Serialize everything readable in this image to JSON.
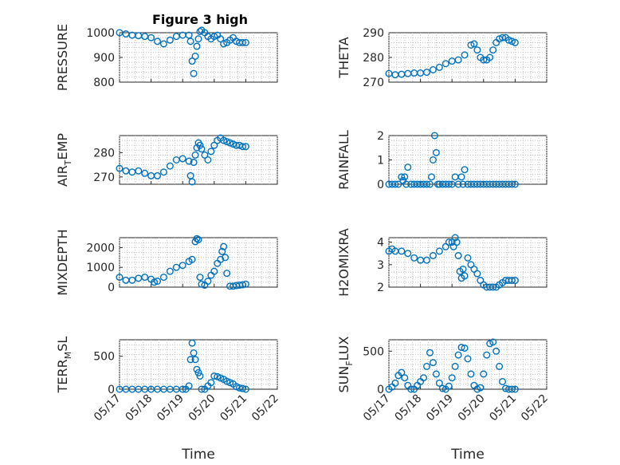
{
  "figure": {
    "title": "Figure 3 high"
  },
  "chart_data": [
    {
      "type": "scatter",
      "ylabel": "PRESSURE",
      "ylabel_parts": [
        [
          "PRESSURE",
          ""
        ]
      ],
      "xlabel": "",
      "ylim": [
        800,
        1000
      ],
      "yticks": [
        800,
        900,
        1000
      ],
      "xlim": [
        17,
        22
      ],
      "xticks": [
        "05/17",
        "05/18",
        "05/19",
        "05/20",
        "05/21",
        "05/22"
      ],
      "grid": true,
      "color": "#0072BD",
      "x": [
        17.0,
        17.2,
        17.4,
        17.6,
        17.8,
        18.0,
        18.2,
        18.4,
        18.6,
        18.8,
        19.0,
        19.2,
        19.25,
        19.3,
        19.35,
        19.4,
        19.45,
        19.5,
        19.55,
        19.6,
        19.7,
        19.8,
        19.9,
        20.0,
        20.1,
        20.2,
        20.3,
        20.4,
        20.5,
        20.6,
        20.7,
        20.8,
        20.9,
        21.0
      ],
      "y": [
        1000,
        995,
        990,
        988,
        985,
        980,
        965,
        955,
        970,
        985,
        990,
        990,
        965,
        885,
        835,
        905,
        945,
        975,
        1005,
        1010,
        1000,
        985,
        975,
        985,
        990,
        975,
        955,
        960,
        970,
        980,
        965,
        960,
        960,
        960
      ]
    },
    {
      "type": "scatter",
      "ylabel": "THETA",
      "ylabel_parts": [
        [
          "THETA",
          ""
        ]
      ],
      "xlabel": "",
      "ylim": [
        270,
        290
      ],
      "yticks": [
        270,
        280,
        290
      ],
      "xlim": [
        17,
        22
      ],
      "xticks": [
        "05/17",
        "05/18",
        "05/19",
        "05/20",
        "05/21",
        "05/22"
      ],
      "grid": true,
      "color": "#0072BD",
      "x": [
        17.0,
        17.2,
        17.4,
        17.6,
        17.8,
        18.0,
        18.2,
        18.4,
        18.6,
        18.8,
        19.0,
        19.2,
        19.4,
        19.6,
        19.7,
        19.8,
        19.9,
        20.0,
        20.1,
        20.2,
        20.3,
        20.4,
        20.5,
        20.6,
        20.7,
        20.8,
        20.9,
        21.0
      ],
      "y": [
        273.5,
        273,
        273.2,
        273.5,
        273.7,
        273.7,
        274,
        275,
        276,
        277.5,
        278.5,
        279,
        281,
        285,
        285.5,
        283,
        280,
        279,
        279,
        280,
        283,
        286,
        287.5,
        288,
        288,
        287,
        286.5,
        286
      ]
    },
    {
      "type": "scatter",
      "ylabel": "AIR_TEMP",
      "ylabel_parts": [
        [
          "AIR",
          ""
        ],
        [
          "T",
          "sub"
        ],
        [
          "EMP",
          ""
        ]
      ],
      "xlabel": "",
      "ylim": [
        267,
        287
      ],
      "yticks": [
        270,
        280
      ],
      "xlim": [
        17,
        22
      ],
      "xticks": [
        "05/17",
        "05/18",
        "05/19",
        "05/20",
        "05/21",
        "05/22"
      ],
      "grid": true,
      "color": "#0072BD",
      "x": [
        17.0,
        17.2,
        17.4,
        17.6,
        17.8,
        18.0,
        18.2,
        18.4,
        18.6,
        18.8,
        19.0,
        19.2,
        19.25,
        19.3,
        19.35,
        19.4,
        19.45,
        19.5,
        19.55,
        19.6,
        19.7,
        19.8,
        19.9,
        20.0,
        20.1,
        20.2,
        20.3,
        20.4,
        20.5,
        20.6,
        20.7,
        20.8,
        20.9,
        21.0
      ],
      "y": [
        273.5,
        272.5,
        272,
        272.5,
        271.5,
        270.5,
        270.5,
        272,
        274.5,
        277,
        277.5,
        276.5,
        270.5,
        268,
        276,
        279,
        282,
        284,
        283,
        281.5,
        279,
        277,
        280.5,
        283,
        285,
        286,
        285,
        284.5,
        284,
        283.5,
        283,
        283,
        282.5,
        282.5
      ]
    },
    {
      "type": "scatter",
      "ylabel": "RAINFALL",
      "ylabel_parts": [
        [
          "RAINFALL",
          ""
        ]
      ],
      "xlabel": "",
      "ylim": [
        0,
        2
      ],
      "yticks": [
        0,
        1,
        2
      ],
      "xlim": [
        17,
        22
      ],
      "xticks": [
        "05/17",
        "05/18",
        "05/19",
        "05/20",
        "05/21",
        "05/22"
      ],
      "grid": true,
      "color": "#0072BD",
      "x": [
        17.0,
        17.1,
        17.2,
        17.3,
        17.4,
        17.45,
        17.5,
        17.55,
        17.6,
        17.7,
        17.8,
        17.9,
        18.0,
        18.1,
        18.2,
        18.3,
        18.35,
        18.4,
        18.45,
        18.5,
        18.55,
        18.6,
        18.7,
        18.8,
        18.9,
        19.0,
        19.1,
        19.2,
        19.3,
        19.35,
        19.4,
        19.5,
        19.6,
        19.7,
        19.8,
        19.9,
        20.0,
        20.1,
        20.2,
        20.3,
        20.4,
        20.5,
        20.6,
        20.7,
        20.8,
        20.9,
        21.0
      ],
      "y": [
        0,
        0,
        0,
        0,
        0.3,
        0.15,
        0.3,
        0,
        0.7,
        0,
        0,
        0,
        0,
        0,
        0,
        0,
        0.3,
        1.0,
        2.0,
        1.3,
        0,
        0,
        0,
        0,
        0,
        0,
        0.3,
        0,
        0.3,
        0,
        0.6,
        0,
        0,
        0,
        0,
        0,
        0,
        0,
        0,
        0,
        0,
        0,
        0,
        0,
        0,
        0,
        0
      ]
    },
    {
      "type": "scatter",
      "ylabel": "MIXDEPTH",
      "ylabel_parts": [
        [
          "MIXDEPTH",
          ""
        ]
      ],
      "xlabel": "",
      "ylim": [
        0,
        2500
      ],
      "yticks": [
        0,
        1000,
        2000
      ],
      "xlim": [
        17,
        22
      ],
      "xticks": [
        "05/17",
        "05/18",
        "05/19",
        "05/20",
        "05/21",
        "05/22"
      ],
      "grid": true,
      "color": "#0072BD",
      "x": [
        17.0,
        17.2,
        17.4,
        17.6,
        17.8,
        18.0,
        18.1,
        18.2,
        18.4,
        18.6,
        18.8,
        19.0,
        19.2,
        19.3,
        19.4,
        19.45,
        19.5,
        19.55,
        19.6,
        19.7,
        19.8,
        19.9,
        20.0,
        20.1,
        20.2,
        20.25,
        20.3,
        20.35,
        20.4,
        20.5,
        20.6,
        20.7,
        20.8,
        20.9,
        21.0
      ],
      "y": [
        500,
        350,
        350,
        450,
        500,
        400,
        250,
        300,
        500,
        800,
        1000,
        1100,
        1300,
        1400,
        2300,
        2450,
        2400,
        500,
        150,
        100,
        300,
        600,
        800,
        1200,
        1400,
        1800,
        2050,
        1500,
        700,
        50,
        50,
        80,
        100,
        120,
        150
      ]
    },
    {
      "type": "scatter",
      "ylabel": "H2OMIXRA",
      "ylabel_parts": [
        [
          "H2OMIXRA",
          ""
        ]
      ],
      "xlabel": "",
      "ylim": [
        2,
        4.2
      ],
      "yticks": [
        2,
        3,
        4
      ],
      "xlim": [
        17,
        22
      ],
      "xticks": [
        "05/17",
        "05/18",
        "05/19",
        "05/20",
        "05/21",
        "05/22"
      ],
      "grid": true,
      "color": "#0072BD",
      "x": [
        17.0,
        17.1,
        17.2,
        17.4,
        17.6,
        17.8,
        18.0,
        18.2,
        18.4,
        18.6,
        18.8,
        18.9,
        19.0,
        19.05,
        19.1,
        19.15,
        19.2,
        19.25,
        19.3,
        19.35,
        19.4,
        19.5,
        19.6,
        19.7,
        19.8,
        19.9,
        20.0,
        20.1,
        20.2,
        20.3,
        20.4,
        20.5,
        20.6,
        20.7,
        20.8,
        20.9,
        21.0
      ],
      "y": [
        3.6,
        3.7,
        3.6,
        3.6,
        3.5,
        3.3,
        3.2,
        3.2,
        3.4,
        3.6,
        3.8,
        4.0,
        4.0,
        3.8,
        4.2,
        4.0,
        3.4,
        2.7,
        2.4,
        2.8,
        2.5,
        3.3,
        3.0,
        2.8,
        2.6,
        2.3,
        2.1,
        2.0,
        2.0,
        2.0,
        2.0,
        2.1,
        2.2,
        2.3,
        2.3,
        2.3,
        2.3
      ]
    },
    {
      "type": "scatter",
      "ylabel": "TERR_MSL",
      "ylabel_parts": [
        [
          "TERR",
          ""
        ],
        [
          "M",
          "sub"
        ],
        [
          "SL",
          ""
        ]
      ],
      "xlabel": "Time",
      "ylim": [
        0,
        750
      ],
      "yticks": [
        0,
        500
      ],
      "xlim": [
        17,
        22
      ],
      "xticks": [
        "05/17",
        "05/18",
        "05/19",
        "05/20",
        "05/21",
        "05/22"
      ],
      "grid": true,
      "color": "#0072BD",
      "x": [
        17.0,
        17.2,
        17.4,
        17.6,
        17.8,
        18.0,
        18.2,
        18.4,
        18.6,
        18.8,
        19.0,
        19.1,
        19.2,
        19.25,
        19.3,
        19.35,
        19.4,
        19.45,
        19.5,
        19.55,
        19.6,
        19.7,
        19.8,
        19.9,
        20.0,
        20.1,
        20.2,
        20.3,
        20.4,
        20.5,
        20.6,
        20.7,
        20.8,
        20.9,
        21.0
      ],
      "y": [
        0,
        0,
        0,
        0,
        0,
        0,
        0,
        0,
        0,
        0,
        0,
        0,
        50,
        450,
        700,
        550,
        450,
        300,
        250,
        200,
        0,
        0,
        50,
        100,
        200,
        190,
        170,
        150,
        120,
        100,
        80,
        40,
        20,
        10,
        0
      ]
    },
    {
      "type": "scatter",
      "ylabel": "SUN_FLUX",
      "ylabel_parts": [
        [
          "SUN",
          ""
        ],
        [
          "F",
          "sub"
        ],
        [
          "LUX",
          ""
        ]
      ],
      "xlabel": "Time",
      "ylim": [
        0,
        650
      ],
      "yticks": [
        0,
        500
      ],
      "xlim": [
        17,
        22
      ],
      "xticks": [
        "05/17",
        "05/18",
        "05/19",
        "05/20",
        "05/21",
        "05/22"
      ],
      "grid": true,
      "color": "#0072BD",
      "x": [
        17.0,
        17.1,
        17.2,
        17.3,
        17.4,
        17.5,
        17.6,
        17.7,
        17.8,
        17.9,
        18.0,
        18.1,
        18.2,
        18.3,
        18.4,
        18.5,
        18.6,
        18.7,
        18.8,
        18.9,
        19.0,
        19.1,
        19.2,
        19.3,
        19.4,
        19.5,
        19.6,
        19.7,
        19.8,
        19.9,
        20.0,
        20.1,
        20.2,
        20.3,
        20.4,
        20.5,
        20.6,
        20.7,
        20.8,
        20.9,
        21.0
      ],
      "y": [
        0,
        30,
        80,
        180,
        220,
        150,
        50,
        0,
        0,
        50,
        100,
        150,
        300,
        480,
        350,
        200,
        80,
        10,
        0,
        40,
        150,
        300,
        450,
        550,
        540,
        400,
        200,
        50,
        0,
        20,
        200,
        450,
        600,
        620,
        500,
        300,
        100,
        10,
        0,
        0,
        0
      ]
    }
  ]
}
